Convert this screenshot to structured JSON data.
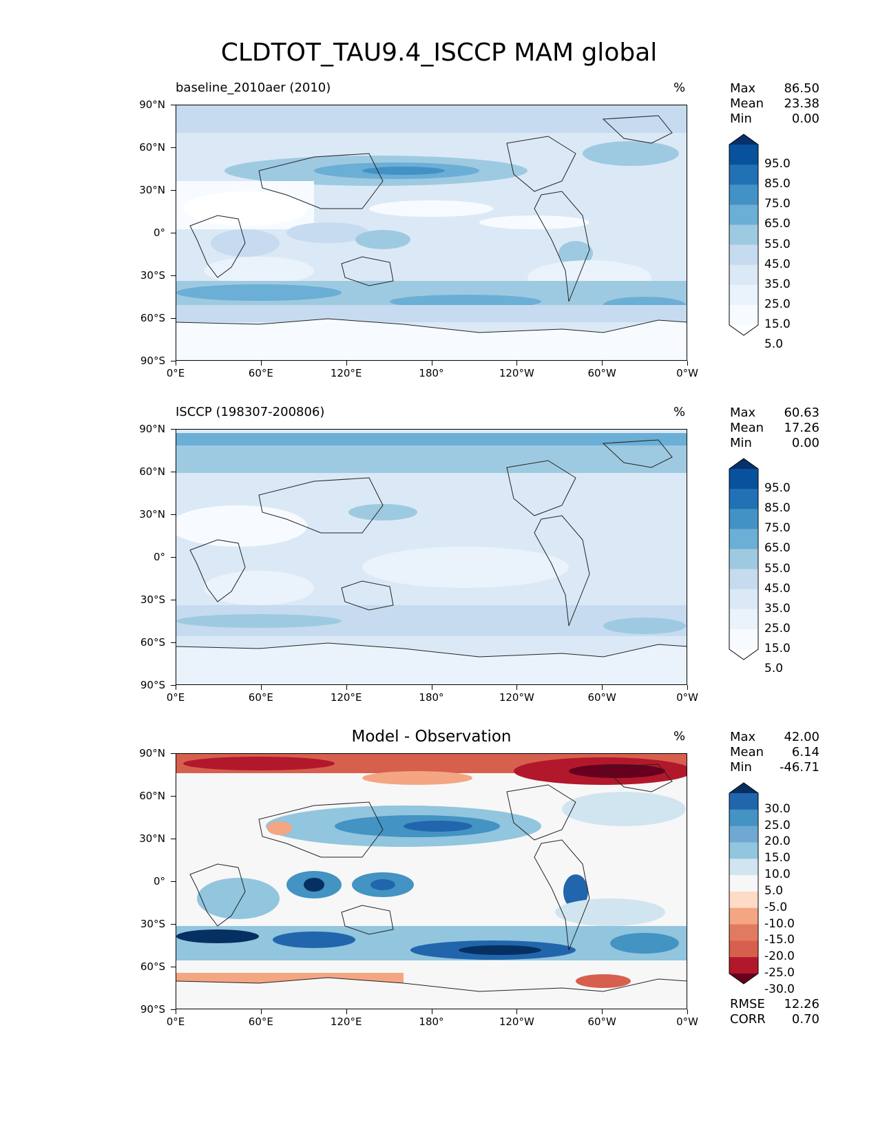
{
  "title": "CLDTOT_TAU9.4_ISCCP MAM global",
  "lat_ticks": [
    "90°N",
    "60°N",
    "30°N",
    "0°",
    "30°S",
    "60°S",
    "90°S"
  ],
  "lon_ticks": [
    "0°E",
    "60°E",
    "120°E",
    "180°",
    "120°W",
    "60°W",
    "0°W"
  ],
  "panels": [
    {
      "subtitle": "baseline_2010aer (2010)",
      "units": "%",
      "stats": [
        {
          "label": "Max",
          "value": "86.50"
        },
        {
          "label": "Mean",
          "value": "23.38"
        },
        {
          "label": "Min",
          "value": "0.00"
        }
      ],
      "colorbar_labels": [
        "95.0",
        "85.0",
        "75.0",
        "65.0",
        "55.0",
        "45.0",
        "35.0",
        "25.0",
        "15.0",
        "5.0"
      ],
      "colorbar_colors": [
        "#08306b",
        "#08519c",
        "#2171b5",
        "#4292c6",
        "#6baed6",
        "#9ecae1",
        "#c6dbef",
        "#dbe9f6",
        "#eaf2fb",
        "#f7fbff",
        "#ffffff"
      ]
    },
    {
      "subtitle": "ISCCP (198307-200806)",
      "units": "%",
      "stats": [
        {
          "label": "Max",
          "value": "60.63"
        },
        {
          "label": "Mean",
          "value": "17.26"
        },
        {
          "label": "Min",
          "value": "0.00"
        }
      ],
      "colorbar_labels": [
        "95.0",
        "85.0",
        "75.0",
        "65.0",
        "55.0",
        "45.0",
        "35.0",
        "25.0",
        "15.0",
        "5.0"
      ],
      "colorbar_colors": [
        "#08306b",
        "#08519c",
        "#2171b5",
        "#4292c6",
        "#6baed6",
        "#9ecae1",
        "#c6dbef",
        "#dbe9f6",
        "#eaf2fb",
        "#f7fbff",
        "#ffffff"
      ]
    },
    {
      "subtitle": "Model - Observation",
      "units": "%",
      "stats": [
        {
          "label": "Max",
          "value": "42.00"
        },
        {
          "label": "Mean",
          "value": "6.14"
        },
        {
          "label": "Min",
          "value": "-46.71"
        }
      ],
      "colorbar_labels": [
        "30.0",
        "25.0",
        "20.0",
        "15.0",
        "10.0",
        "5.0",
        "-5.0",
        "-10.0",
        "-15.0",
        "-20.0",
        "-25.0",
        "-30.0"
      ],
      "colorbar_colors": [
        "#053061",
        "#2166ac",
        "#4393c3",
        "#6fa8d2",
        "#92c5de",
        "#d1e5f0",
        "#f7f7f7",
        "#fddbc7",
        "#f4a582",
        "#e07b62",
        "#d6604d",
        "#b2182b",
        "#67001f"
      ],
      "extra_stats": [
        {
          "label": "RMSE",
          "value": "12.26"
        },
        {
          "label": "CORR",
          "value": "0.70"
        }
      ]
    }
  ]
}
